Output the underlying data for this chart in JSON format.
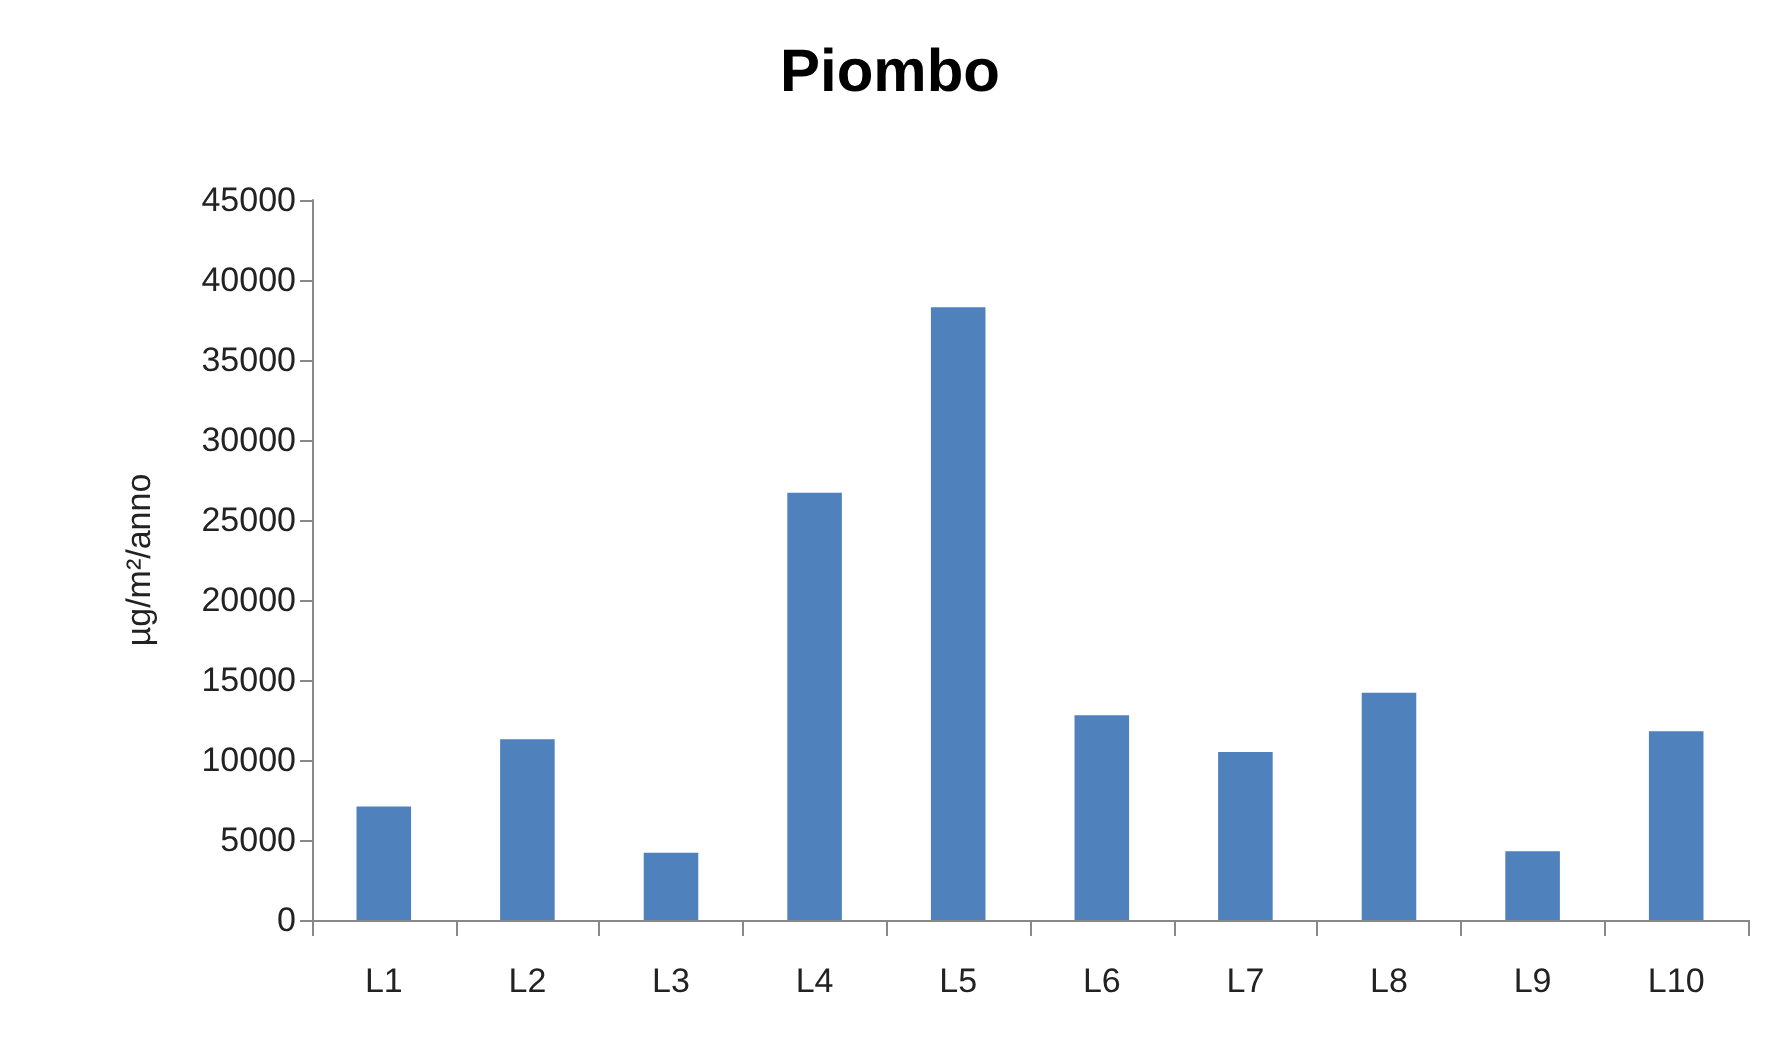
{
  "chart_data": {
    "type": "bar",
    "title": "Piombo",
    "ylabel": "µg/m²/anno",
    "categories": [
      "L1",
      "L2",
      "L3",
      "L4",
      "L5",
      "L6",
      "L7",
      "L8",
      "L9",
      "L10"
    ],
    "values": [
      7100,
      11300,
      4200,
      26700,
      38300,
      12800,
      10500,
      14200,
      4300,
      11800
    ],
    "color": "#4f81bd",
    "ylim": [
      0,
      45000
    ],
    "yticks": [
      0,
      5000,
      10000,
      15000,
      20000,
      25000,
      30000,
      35000,
      40000,
      45000
    ],
    "grid": false
  }
}
